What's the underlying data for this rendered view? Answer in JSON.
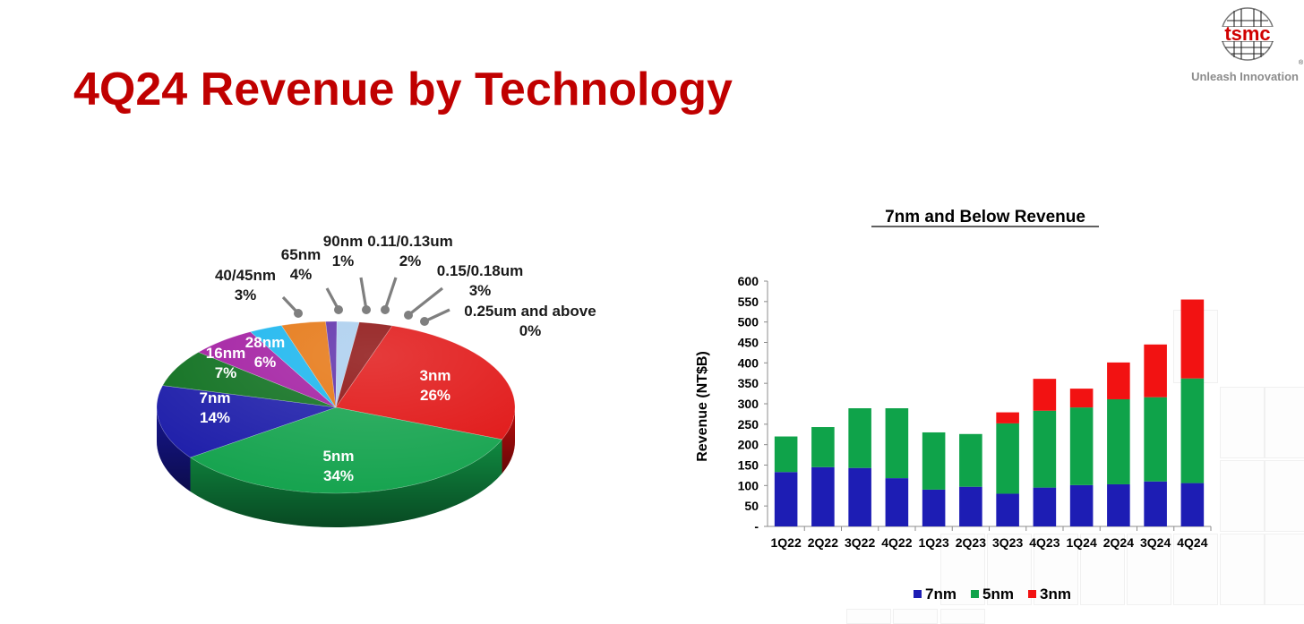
{
  "page": {
    "title": "4Q24 Revenue by Technology",
    "tagline": "Unleash Innovation",
    "logo_text": "tsmc",
    "logo_mark": "®"
  },
  "colors": {
    "title": "#c00000",
    "seven_nm": "#1d1db4",
    "five_nm": "#0fa34a",
    "three_nm": "#f21212"
  },
  "chart_data": [
    {
      "type": "pie",
      "title": "",
      "slices": [
        {
          "label": "3nm",
          "value": 26,
          "pct": "26%",
          "color": "#e01010"
        },
        {
          "label": "5nm",
          "value": 34,
          "pct": "34%",
          "color": "#12a24c"
        },
        {
          "label": "7nm",
          "value": 14,
          "pct": "14%",
          "color": "#1a1aa8"
        },
        {
          "label": "16nm",
          "value": 7,
          "pct": "7%",
          "color": "#0b6e1c"
        },
        {
          "label": "28nm",
          "value": 6,
          "pct": "6%",
          "color": "#a11aa0"
        },
        {
          "label": "40/45nm",
          "value": 3,
          "pct": "3%",
          "color": "#15b4ee"
        },
        {
          "label": "65nm",
          "value": 4,
          "pct": "4%",
          "color": "#e5730d"
        },
        {
          "label": "90nm",
          "value": 1,
          "pct": "1%",
          "color": "#5a2aa8"
        },
        {
          "label": "0.11/0.13um",
          "value": 2,
          "pct": "2%",
          "color": "#a9cdee"
        },
        {
          "label": "0.15/0.18um",
          "value": 3,
          "pct": "3%",
          "color": "#8a0c0c"
        },
        {
          "label": "0.25um and above",
          "value": 0,
          "pct": "0%",
          "color": "#cc1010"
        }
      ]
    },
    {
      "type": "bar",
      "stacked": true,
      "title": "7nm and Below Revenue",
      "ylabel": "Revenue (NT$B)",
      "xlabel": "",
      "ylim": [
        0,
        600
      ],
      "yticks": [
        "-",
        "50",
        "100",
        "150",
        "200",
        "250",
        "300",
        "350",
        "400",
        "450",
        "500",
        "550",
        "600"
      ],
      "categories": [
        "1Q22",
        "2Q22",
        "3Q22",
        "4Q22",
        "1Q23",
        "2Q23",
        "3Q23",
        "4Q23",
        "1Q24",
        "2Q24",
        "3Q24",
        "4Q24"
      ],
      "series": [
        {
          "name": "7nm",
          "color": "#1d1db4",
          "values": [
            133,
            145,
            143,
            118,
            90,
            97,
            80,
            95,
            101,
            103,
            110,
            106
          ]
        },
        {
          "name": "5nm",
          "color": "#0fa34a",
          "values": [
            87,
            98,
            146,
            171,
            140,
            129,
            172,
            188,
            190,
            208,
            206,
            256
          ]
        },
        {
          "name": "3nm",
          "color": "#f21212",
          "values": [
            0,
            0,
            0,
            0,
            0,
            0,
            27,
            78,
            46,
            90,
            129,
            193
          ]
        }
      ],
      "legend_position": "bottom",
      "grid": false
    }
  ]
}
